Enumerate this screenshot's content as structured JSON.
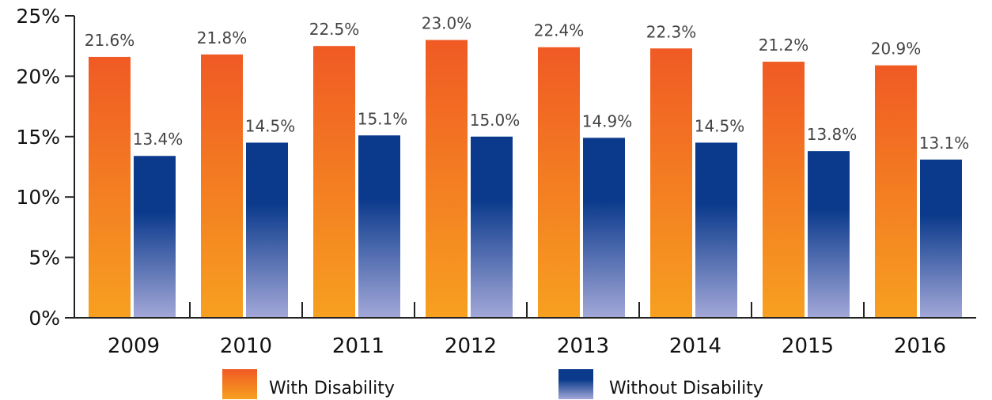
{
  "chart_data": {
    "type": "bar",
    "categories": [
      "2009",
      "2010",
      "2011",
      "2012",
      "2013",
      "2014",
      "2015",
      "2016"
    ],
    "series": [
      {
        "name": "With Disability",
        "values": [
          21.6,
          21.8,
          22.5,
          23.0,
          22.4,
          22.3,
          21.2,
          20.9
        ],
        "labels": [
          "21.6%",
          "21.8%",
          "22.5%",
          "23.0%",
          "22.4%",
          "22.3%",
          "21.2%",
          "20.9%"
        ],
        "color_top": "#f05a24",
        "color_bottom": "#f7a020"
      },
      {
        "name": "Without Disability",
        "values": [
          13.4,
          14.5,
          15.1,
          15.0,
          14.9,
          14.5,
          13.8,
          13.1
        ],
        "labels": [
          "13.4%",
          "14.5%",
          "15.1%",
          "15.0%",
          "14.9%",
          "14.5%",
          "13.8%",
          "13.1%"
        ],
        "color_top": "#0b3a8c",
        "color_bottom": "#a3a8d8"
      }
    ],
    "ylim": [
      0,
      25
    ],
    "yticks": [
      0,
      5,
      10,
      15,
      20,
      25
    ],
    "ytick_labels": [
      "0%",
      "5%",
      "10%",
      "15%",
      "20%",
      "25%"
    ],
    "legend_position": "bottom",
    "grid": false
  }
}
